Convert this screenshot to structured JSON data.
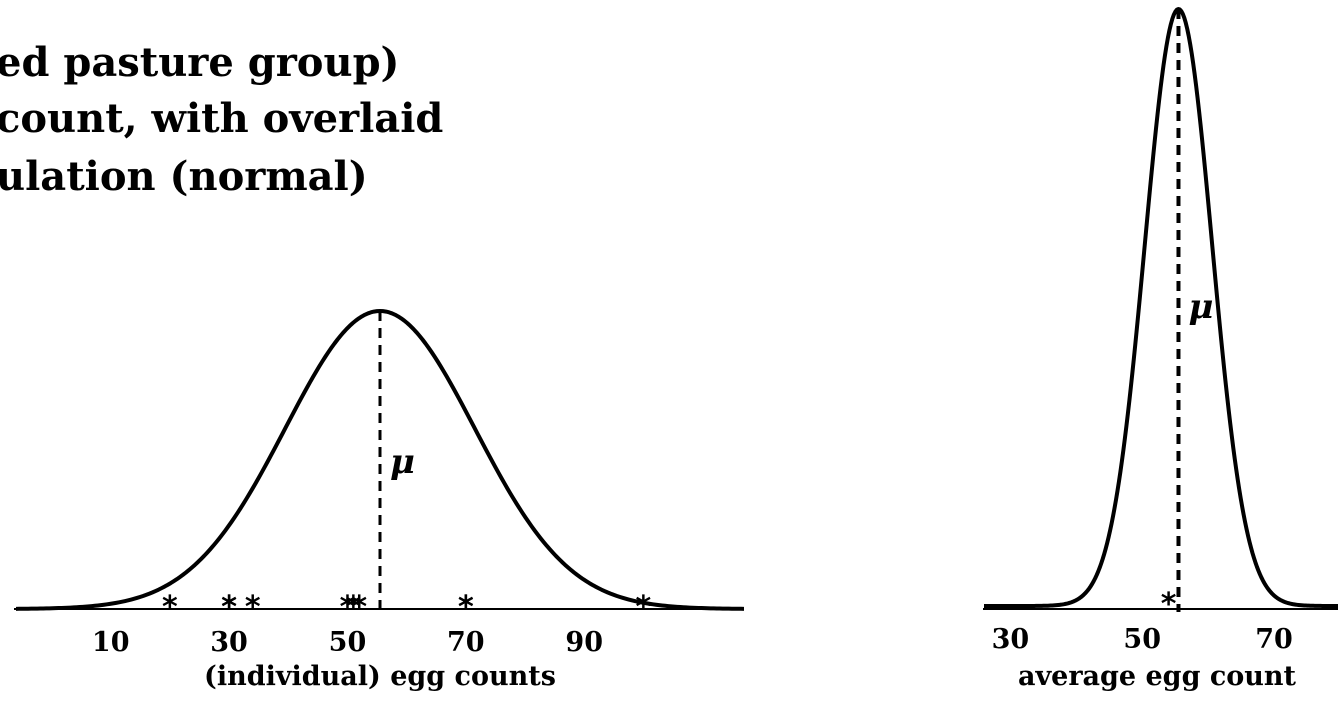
{
  "title_lines": [
    "ed pasture group)",
    "count, with overlaid",
    "ulation (normal)"
  ],
  "chart_data": [
    {
      "type": "line",
      "subtype": "normal-density-with-observations",
      "xlabel": "(individual) egg counts",
      "ylabel": "",
      "ticks": [
        10,
        30,
        50,
        70,
        90
      ],
      "xlim": [
        -6,
        117
      ],
      "mean": 55.5,
      "sd": 16,
      "mean_label": "μ",
      "observations": [
        20,
        30,
        30,
        34,
        50,
        51,
        52,
        70,
        70,
        100
      ],
      "observation_marker": "*"
    },
    {
      "type": "line",
      "subtype": "normal-density-with-observations",
      "xlabel": "average egg count",
      "ylabel": "",
      "ticks": [
        30,
        50,
        70
      ],
      "xlim": [
        26,
        80
      ],
      "mean": 55.5,
      "sd": 5.1,
      "mean_label": "μ",
      "observations": [
        54
      ],
      "observation_marker": "*"
    }
  ]
}
